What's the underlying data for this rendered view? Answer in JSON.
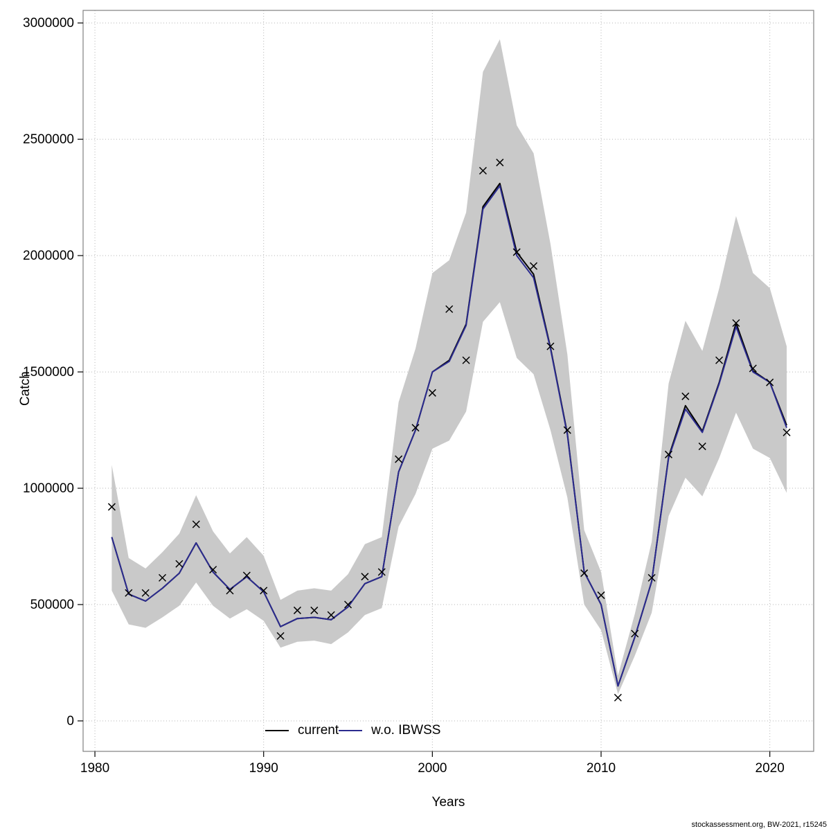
{
  "footer": {
    "text": "stockassessment.org, BW-2021, r15245"
  },
  "chart_data": {
    "type": "line",
    "title": "",
    "xlabel": "Years",
    "ylabel": "Catch",
    "xlim": [
      1979.3,
      2022.6
    ],
    "ylim": [
      -131000,
      3054000
    ],
    "x_ticks": [
      1980,
      1990,
      2000,
      2010,
      2020
    ],
    "y_ticks": [
      0,
      500000,
      1000000,
      1500000,
      2000000,
      2500000,
      3000000
    ],
    "grid": "dotted",
    "legend_position": "bottom-inside",
    "style": {
      "grid_color": "#b5b5b5",
      "border_color": "#808080",
      "marker_color": "#000000"
    },
    "years": [
      1981,
      1982,
      1983,
      1984,
      1985,
      1986,
      1987,
      1988,
      1989,
      1990,
      1991,
      1992,
      1993,
      1994,
      1995,
      1996,
      1997,
      1998,
      1999,
      2000,
      2001,
      2002,
      2003,
      2004,
      2005,
      2006,
      2007,
      2008,
      2009,
      2010,
      2011,
      2012,
      2013,
      2014,
      2015,
      2016,
      2017,
      2018,
      2019,
      2020,
      2021
    ],
    "series": [
      {
        "name": "current",
        "color": "#000000",
        "values": [
          790000,
          545000,
          515000,
          570000,
          635000,
          765000,
          640000,
          565000,
          620000,
          555000,
          405000,
          440000,
          445000,
          435000,
          490000,
          590000,
          620000,
          1070000,
          1250000,
          1500000,
          1550000,
          1705000,
          2210000,
          2310000,
          2015000,
          1920000,
          1605000,
          1235000,
          640000,
          500000,
          150000,
          360000,
          600000,
          1135000,
          1355000,
          1245000,
          1455000,
          1710000,
          1505000,
          1455000,
          1270000
        ]
      },
      {
        "name": "w.o. IBWSS",
        "color": "#2b2b8f",
        "values": [
          790000,
          545000,
          515000,
          570000,
          635000,
          765000,
          640000,
          565000,
          620000,
          555000,
          405000,
          440000,
          445000,
          435000,
          490000,
          590000,
          620000,
          1070000,
          1250000,
          1500000,
          1545000,
          1700000,
          2200000,
          2300000,
          2000000,
          1905000,
          1600000,
          1230000,
          640000,
          500000,
          150000,
          360000,
          600000,
          1130000,
          1340000,
          1240000,
          1450000,
          1695000,
          1500000,
          1455000,
          1260000
        ]
      }
    ],
    "band": {
      "color": "#c9c9c9",
      "lower": [
        560000,
        415000,
        400000,
        445000,
        495000,
        595000,
        495000,
        440000,
        480000,
        430000,
        315000,
        340000,
        345000,
        330000,
        380000,
        455000,
        485000,
        835000,
        975000,
        1170000,
        1205000,
        1330000,
        1715000,
        1800000,
        1560000,
        1490000,
        1250000,
        960000,
        500000,
        390000,
        115000,
        280000,
        465000,
        880000,
        1045000,
        965000,
        1130000,
        1325000,
        1170000,
        1130000,
        980000
      ],
      "upper": [
        1100000,
        700000,
        655000,
        725000,
        805000,
        970000,
        815000,
        720000,
        790000,
        710000,
        520000,
        560000,
        570000,
        560000,
        630000,
        760000,
        790000,
        1370000,
        1600000,
        1925000,
        1980000,
        2185000,
        2790000,
        2930000,
        2560000,
        2440000,
        2050000,
        1575000,
        820000,
        640000,
        195000,
        460000,
        770000,
        1450000,
        1720000,
        1590000,
        1860000,
        2170000,
        1925000,
        1860000,
        1610000
      ]
    },
    "observations": {
      "marker": "x",
      "values": [
        920000,
        550000,
        550000,
        615000,
        675000,
        845000,
        650000,
        560000,
        625000,
        560000,
        365000,
        475000,
        475000,
        455000,
        500000,
        620000,
        640000,
        1125000,
        1260000,
        1410000,
        1770000,
        1550000,
        2365000,
        2400000,
        2015000,
        1955000,
        1610000,
        1250000,
        635000,
        540000,
        100000,
        375000,
        615000,
        1145000,
        1395000,
        1180000,
        1550000,
        1710000,
        1515000,
        1455000,
        1240000
      ]
    }
  }
}
